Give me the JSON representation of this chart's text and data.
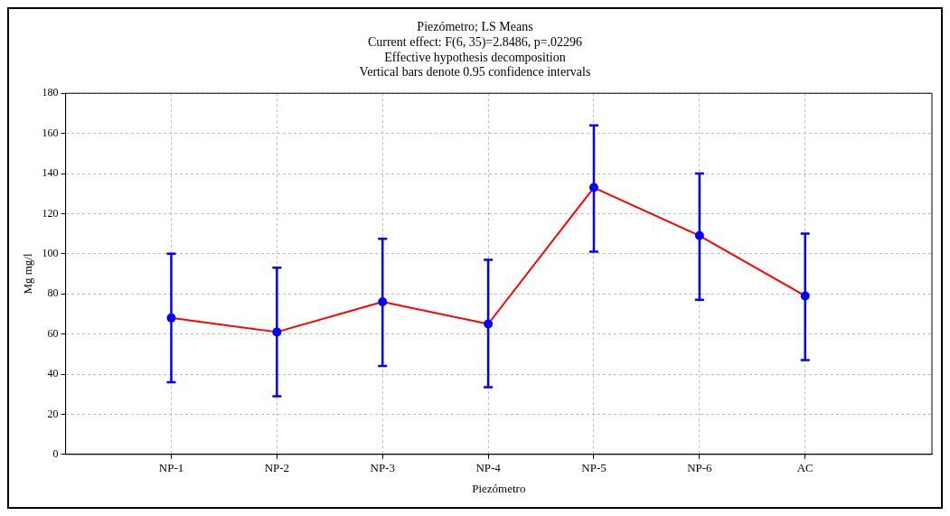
{
  "chart_data": {
    "type": "line",
    "title": "Piezómetro; LS Means",
    "subtitle": "Current effect: F(6, 35)=2.8486, p=.02296",
    "annotations": [
      "Effective hypothesis decomposition",
      "Vertical bars denote 0.95 confidence intervals"
    ],
    "xlabel": "Piezómetro",
    "ylabel": "Mg mg/l",
    "categories": [
      "NP-1",
      "NP-2",
      "NP-3",
      "NP-4",
      "NP-5",
      "NP-6",
      "AC"
    ],
    "series": [
      {
        "color": "#ff0000",
        "colors": [
          "#0000ff",
          "#0000ff",
          "#0000ff",
          "#0000ff",
          "#0000ff",
          "#0000ff",
          "#0000ff"
        ],
        "values": [
          68,
          61,
          76,
          65,
          133,
          109,
          79
        ],
        "errors": [
          [
            36,
            100
          ],
          [
            29,
            93
          ],
          [
            44,
            107.5
          ],
          [
            33.5,
            97
          ],
          [
            101,
            164
          ],
          [
            77,
            140
          ],
          [
            47,
            110
          ]
        ]
      }
    ],
    "ylim": [
      0,
      180
    ],
    "yticks": [
      0,
      20,
      40,
      60,
      80,
      100,
      120,
      140,
      160,
      180
    ],
    "grid": true,
    "legend": false,
    "marker": "circle",
    "line_style": "solid"
  }
}
